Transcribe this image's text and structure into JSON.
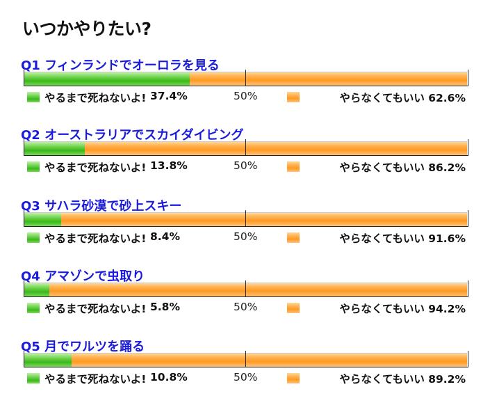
{
  "page_title": "いつかやりたい?",
  "legend": {
    "yes_label": "やるまで死ねないよ!",
    "no_label": "やらなくてもいい",
    "mid_label": "50%"
  },
  "colors": {
    "yes": "#4cc22b",
    "no": "#ffa53a",
    "question_title": "#1a1adb"
  },
  "questions": [
    {
      "title": "Q1 フィンランドでオーロラを見る",
      "yes_pct": "37.4%",
      "no_text": "やらなくてもいい 62.6%"
    },
    {
      "title": "Q2 オーストラリアでスカイダイビング",
      "yes_pct": "13.8%",
      "no_text": "やらなくてもいい 86.2%"
    },
    {
      "title": "Q3 サハラ砂漠で砂上スキー",
      "yes_pct": "8.4%",
      "no_text": "やらなくてもいい 91.6%"
    },
    {
      "title": "Q4 アマゾンで虫取り",
      "yes_pct": "5.8%",
      "no_text": "やらなくてもいい 94.2%"
    },
    {
      "title": "Q5 月でワルツを踊る",
      "yes_pct": "10.8%",
      "no_text": "やらなくてもいい 89.2%"
    }
  ],
  "chart_data": {
    "type": "bar",
    "orientation": "horizontal-stacked-100",
    "categories": [
      "Q1 フィンランドでオーロラを見る",
      "Q2 オーストラリアでスカイダイビング",
      "Q3 サハラ砂漠で砂上スキー",
      "Q4 アマゾンで虫取り",
      "Q5 月でワルツを踊る"
    ],
    "series": [
      {
        "name": "やるまで死ねないよ!",
        "values": [
          37.4,
          13.8,
          8.4,
          5.8,
          10.8
        ]
      },
      {
        "name": "やらなくてもいい",
        "values": [
          62.6,
          86.2,
          91.6,
          94.2,
          89.2
        ]
      }
    ],
    "xlim": [
      0,
      100
    ],
    "title": "いつかやりたい?"
  }
}
